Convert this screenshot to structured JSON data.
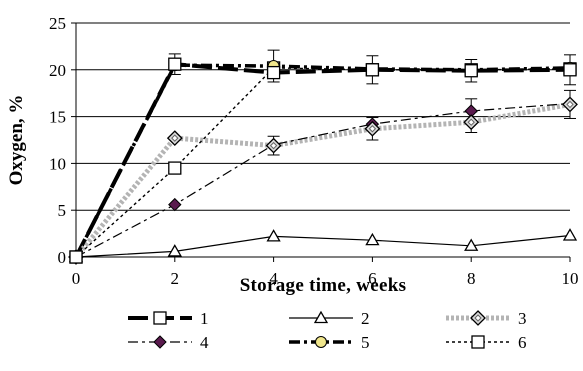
{
  "chart_data": {
    "type": "line",
    "title": "",
    "xlabel": "Storage time, weeks",
    "ylabel": "Oxygen, %",
    "x": [
      0,
      2,
      4,
      6,
      8,
      10
    ],
    "xlim": [
      0,
      10
    ],
    "ylim": [
      0,
      25
    ],
    "xticks": [
      "0",
      "2",
      "4",
      "6",
      "8",
      "10"
    ],
    "yticks": [
      "0",
      "5",
      "10",
      "15",
      "20",
      "25"
    ],
    "grid": "horizontal",
    "legend_position": "bottom",
    "series": [
      {
        "name": "1",
        "values": [
          0,
          20.6,
          19.7,
          20.0,
          19.9,
          20.0
        ],
        "errors": [
          0,
          1.1,
          0.6,
          1.5,
          1.2,
          1.6
        ],
        "color": "#000000",
        "style": "long-dash",
        "marker": "square-open"
      },
      {
        "name": "2",
        "values": [
          0,
          0.6,
          2.2,
          1.8,
          1.2,
          2.3
        ],
        "errors": [
          0,
          0,
          0,
          0,
          0,
          0
        ],
        "color": "#000000",
        "style": "solid-thin",
        "marker": "triangle-open"
      },
      {
        "name": "3",
        "values": [
          0,
          12.7,
          11.9,
          13.7,
          14.4,
          16.3
        ],
        "errors": [
          0,
          0,
          1.0,
          1.2,
          1.1,
          1.5
        ],
        "color": "#b4b4b4",
        "style": "thick-gray",
        "marker": "diamond-open"
      },
      {
        "name": "4",
        "values": [
          0,
          5.6,
          12.0,
          14.2,
          15.6,
          16.4
        ],
        "errors": [
          0,
          0,
          0,
          0,
          1.3,
          0
        ],
        "color": "#5a1a4e",
        "style": "dash-dot",
        "marker": "diamond-filled"
      },
      {
        "name": "5",
        "values": [
          0,
          20.5,
          20.4,
          20.1,
          20.0,
          20.2
        ],
        "errors": [
          0,
          0,
          1.7,
          0,
          0,
          0
        ],
        "color": "#f0e68c",
        "style": "dash-dot-thick",
        "marker": "circle-filled"
      },
      {
        "name": "6",
        "values": [
          0,
          9.5,
          20.2,
          20.0,
          20.0,
          20.1
        ],
        "errors": [
          0,
          0,
          0,
          0,
          0,
          0
        ],
        "color": "#000000",
        "style": "dotted",
        "marker": "square-open"
      }
    ]
  }
}
